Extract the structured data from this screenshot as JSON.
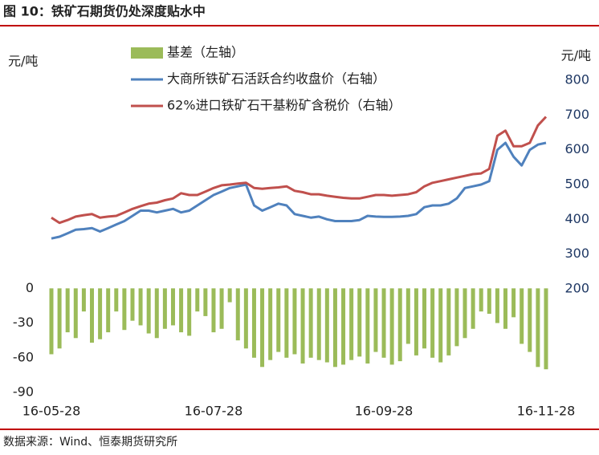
{
  "chart_data": {
    "type": "bar",
    "title": "图 10：铁矿石期货仍处深度贴水中",
    "source": "数据来源：Wind、恒泰期货研究所",
    "y_label": "元/吨",
    "y2_label": "元/吨",
    "categories": [
      "16-05-28",
      null,
      null,
      null,
      null,
      null,
      null,
      null,
      null,
      null,
      null,
      null,
      null,
      null,
      null,
      null,
      null,
      null,
      null,
      null,
      "16-07-28",
      null,
      null,
      null,
      null,
      null,
      null,
      null,
      null,
      null,
      null,
      null,
      null,
      null,
      null,
      null,
      null,
      null,
      null,
      null,
      null,
      "16-09-28",
      null,
      null,
      null,
      null,
      null,
      null,
      null,
      null,
      null,
      null,
      null,
      null,
      null,
      null,
      null,
      null,
      null,
      null,
      null,
      "16-11-28"
    ],
    "ylim": [
      -90,
      180
    ],
    "yticks": [
      0,
      -30,
      -60,
      -90
    ],
    "y2lim": [
      200,
      800
    ],
    "y2ticks": [
      200,
      300,
      400,
      500,
      600,
      700,
      800
    ],
    "series": [
      {
        "name": "基差（左轴）",
        "type": "bar",
        "axis": "y",
        "color": "#9bbb59",
        "values": [
          -57,
          -52,
          -38,
          -43,
          -20,
          -47,
          -44,
          -38,
          -20,
          -36,
          -28,
          -32,
          -39,
          -43,
          -35,
          -32,
          -38,
          -41,
          -20,
          -24,
          -38,
          -35,
          -12,
          -45,
          -52,
          -60,
          -68,
          -62,
          -55,
          -60,
          -57,
          -65,
          -60,
          -62,
          -64,
          -68,
          -66,
          -62,
          -59,
          -65,
          -55,
          -60,
          -66,
          -63,
          -48,
          -58,
          -52,
          -60,
          -64,
          -58,
          -50,
          -43,
          -35,
          -20,
          -22,
          -30,
          -35,
          -25,
          -48,
          -55,
          -68,
          -70
        ]
      },
      {
        "name": "大商所铁矿石活跃合约收盘价（右轴）",
        "type": "line",
        "axis": "y2",
        "color": "#4f81bd",
        "values": [
          345,
          350,
          360,
          370,
          372,
          375,
          365,
          375,
          385,
          395,
          410,
          425,
          425,
          420,
          425,
          430,
          420,
          425,
          440,
          455,
          470,
          480,
          490,
          495,
          500,
          440,
          425,
          435,
          445,
          440,
          415,
          410,
          405,
          408,
          400,
          395,
          395,
          395,
          398,
          410,
          408,
          407,
          407,
          408,
          410,
          415,
          435,
          440,
          440,
          445,
          460,
          490,
          495,
          500,
          510,
          600,
          620,
          580,
          555,
          600,
          615,
          620
        ]
      },
      {
        "name": "62%进口铁矿石干基粉矿含税价（右轴）",
        "type": "line",
        "axis": "y2",
        "color": "#c0504d",
        "values": [
          405,
          390,
          398,
          408,
          412,
          415,
          405,
          408,
          410,
          420,
          430,
          438,
          445,
          448,
          455,
          460,
          475,
          470,
          470,
          480,
          490,
          498,
          500,
          503,
          505,
          490,
          488,
          490,
          492,
          495,
          482,
          478,
          472,
          472,
          468,
          465,
          462,
          460,
          460,
          465,
          470,
          470,
          468,
          470,
          472,
          478,
          495,
          505,
          510,
          515,
          520,
          525,
          530,
          532,
          545,
          640,
          655,
          610,
          610,
          620,
          670,
          695
        ]
      }
    ]
  }
}
